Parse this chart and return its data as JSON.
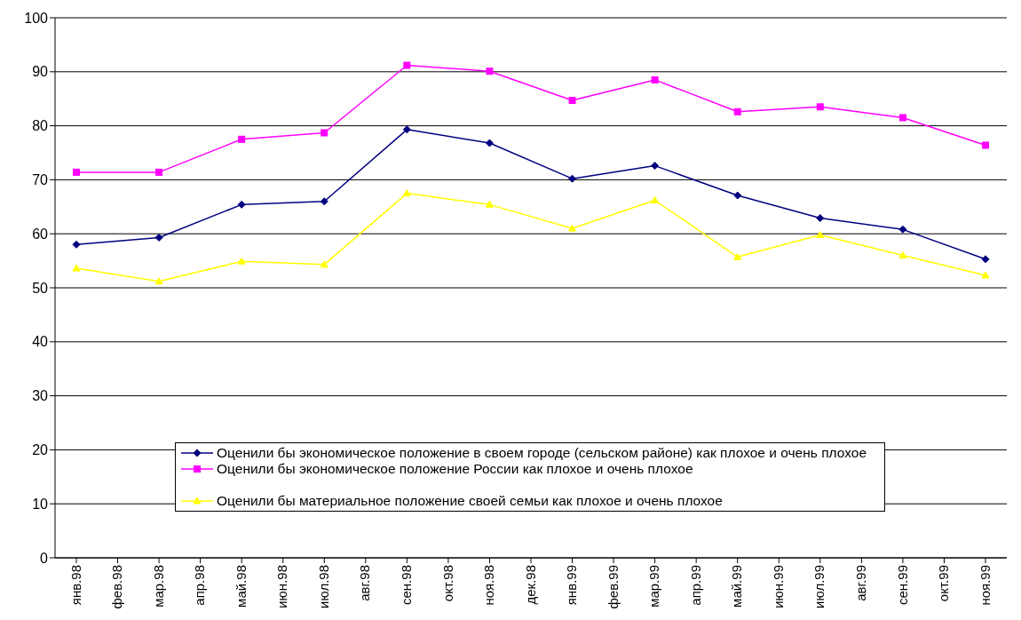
{
  "chart_data": {
    "type": "line",
    "categories": [
      "янв.98",
      "фев.98",
      "мар.98",
      "апр.98",
      "май.98",
      "июн.98",
      "июл.98",
      "авг.98",
      "сен.98",
      "окт.98",
      "ноя.98",
      "дек.98",
      "янв.99",
      "фев.99",
      "мар.99",
      "апр.99",
      "май.99",
      "июн.99",
      "июл.99",
      "авг.99",
      "сен.99",
      "окт.99",
      "ноя.99"
    ],
    "series": [
      {
        "name": "Оценили бы экономическое положение в своем городе (сельском районе) как плохое и очень плохое",
        "color": "#000080",
        "marker": "diamond",
        "values": [
          58,
          null,
          59.3,
          null,
          65.4,
          null,
          66,
          null,
          79.3,
          null,
          76.8,
          null,
          70.2,
          null,
          72.6,
          null,
          67.1,
          null,
          62.9,
          null,
          60.8,
          null,
          55.3
        ]
      },
      {
        "name": "Оценили бы экономическое положение России как плохое и очень плохое",
        "color": "#ff00ff",
        "marker": "square",
        "values": [
          71.4,
          null,
          71.4,
          null,
          77.5,
          null,
          78.7,
          null,
          91.2,
          null,
          90.1,
          null,
          84.7,
          null,
          88.5,
          null,
          82.6,
          null,
          83.5,
          null,
          81.5,
          null,
          76.4
        ]
      },
      {
        "name": "Оценили бы материальное положение своей семьи как плохое и очень плохое",
        "color": "#ffff00",
        "marker": "triangle",
        "values": [
          53.6,
          null,
          51.2,
          null,
          54.9,
          null,
          54.3,
          null,
          67.5,
          null,
          65.4,
          null,
          61,
          null,
          66.2,
          null,
          55.7,
          null,
          59.8,
          null,
          56,
          null,
          52.3
        ]
      }
    ],
    "ylim": [
      0,
      100
    ],
    "yticks": [
      0,
      10,
      20,
      30,
      40,
      50,
      60,
      70,
      80,
      90,
      100
    ],
    "grid": "y",
    "legend": "bottom"
  }
}
